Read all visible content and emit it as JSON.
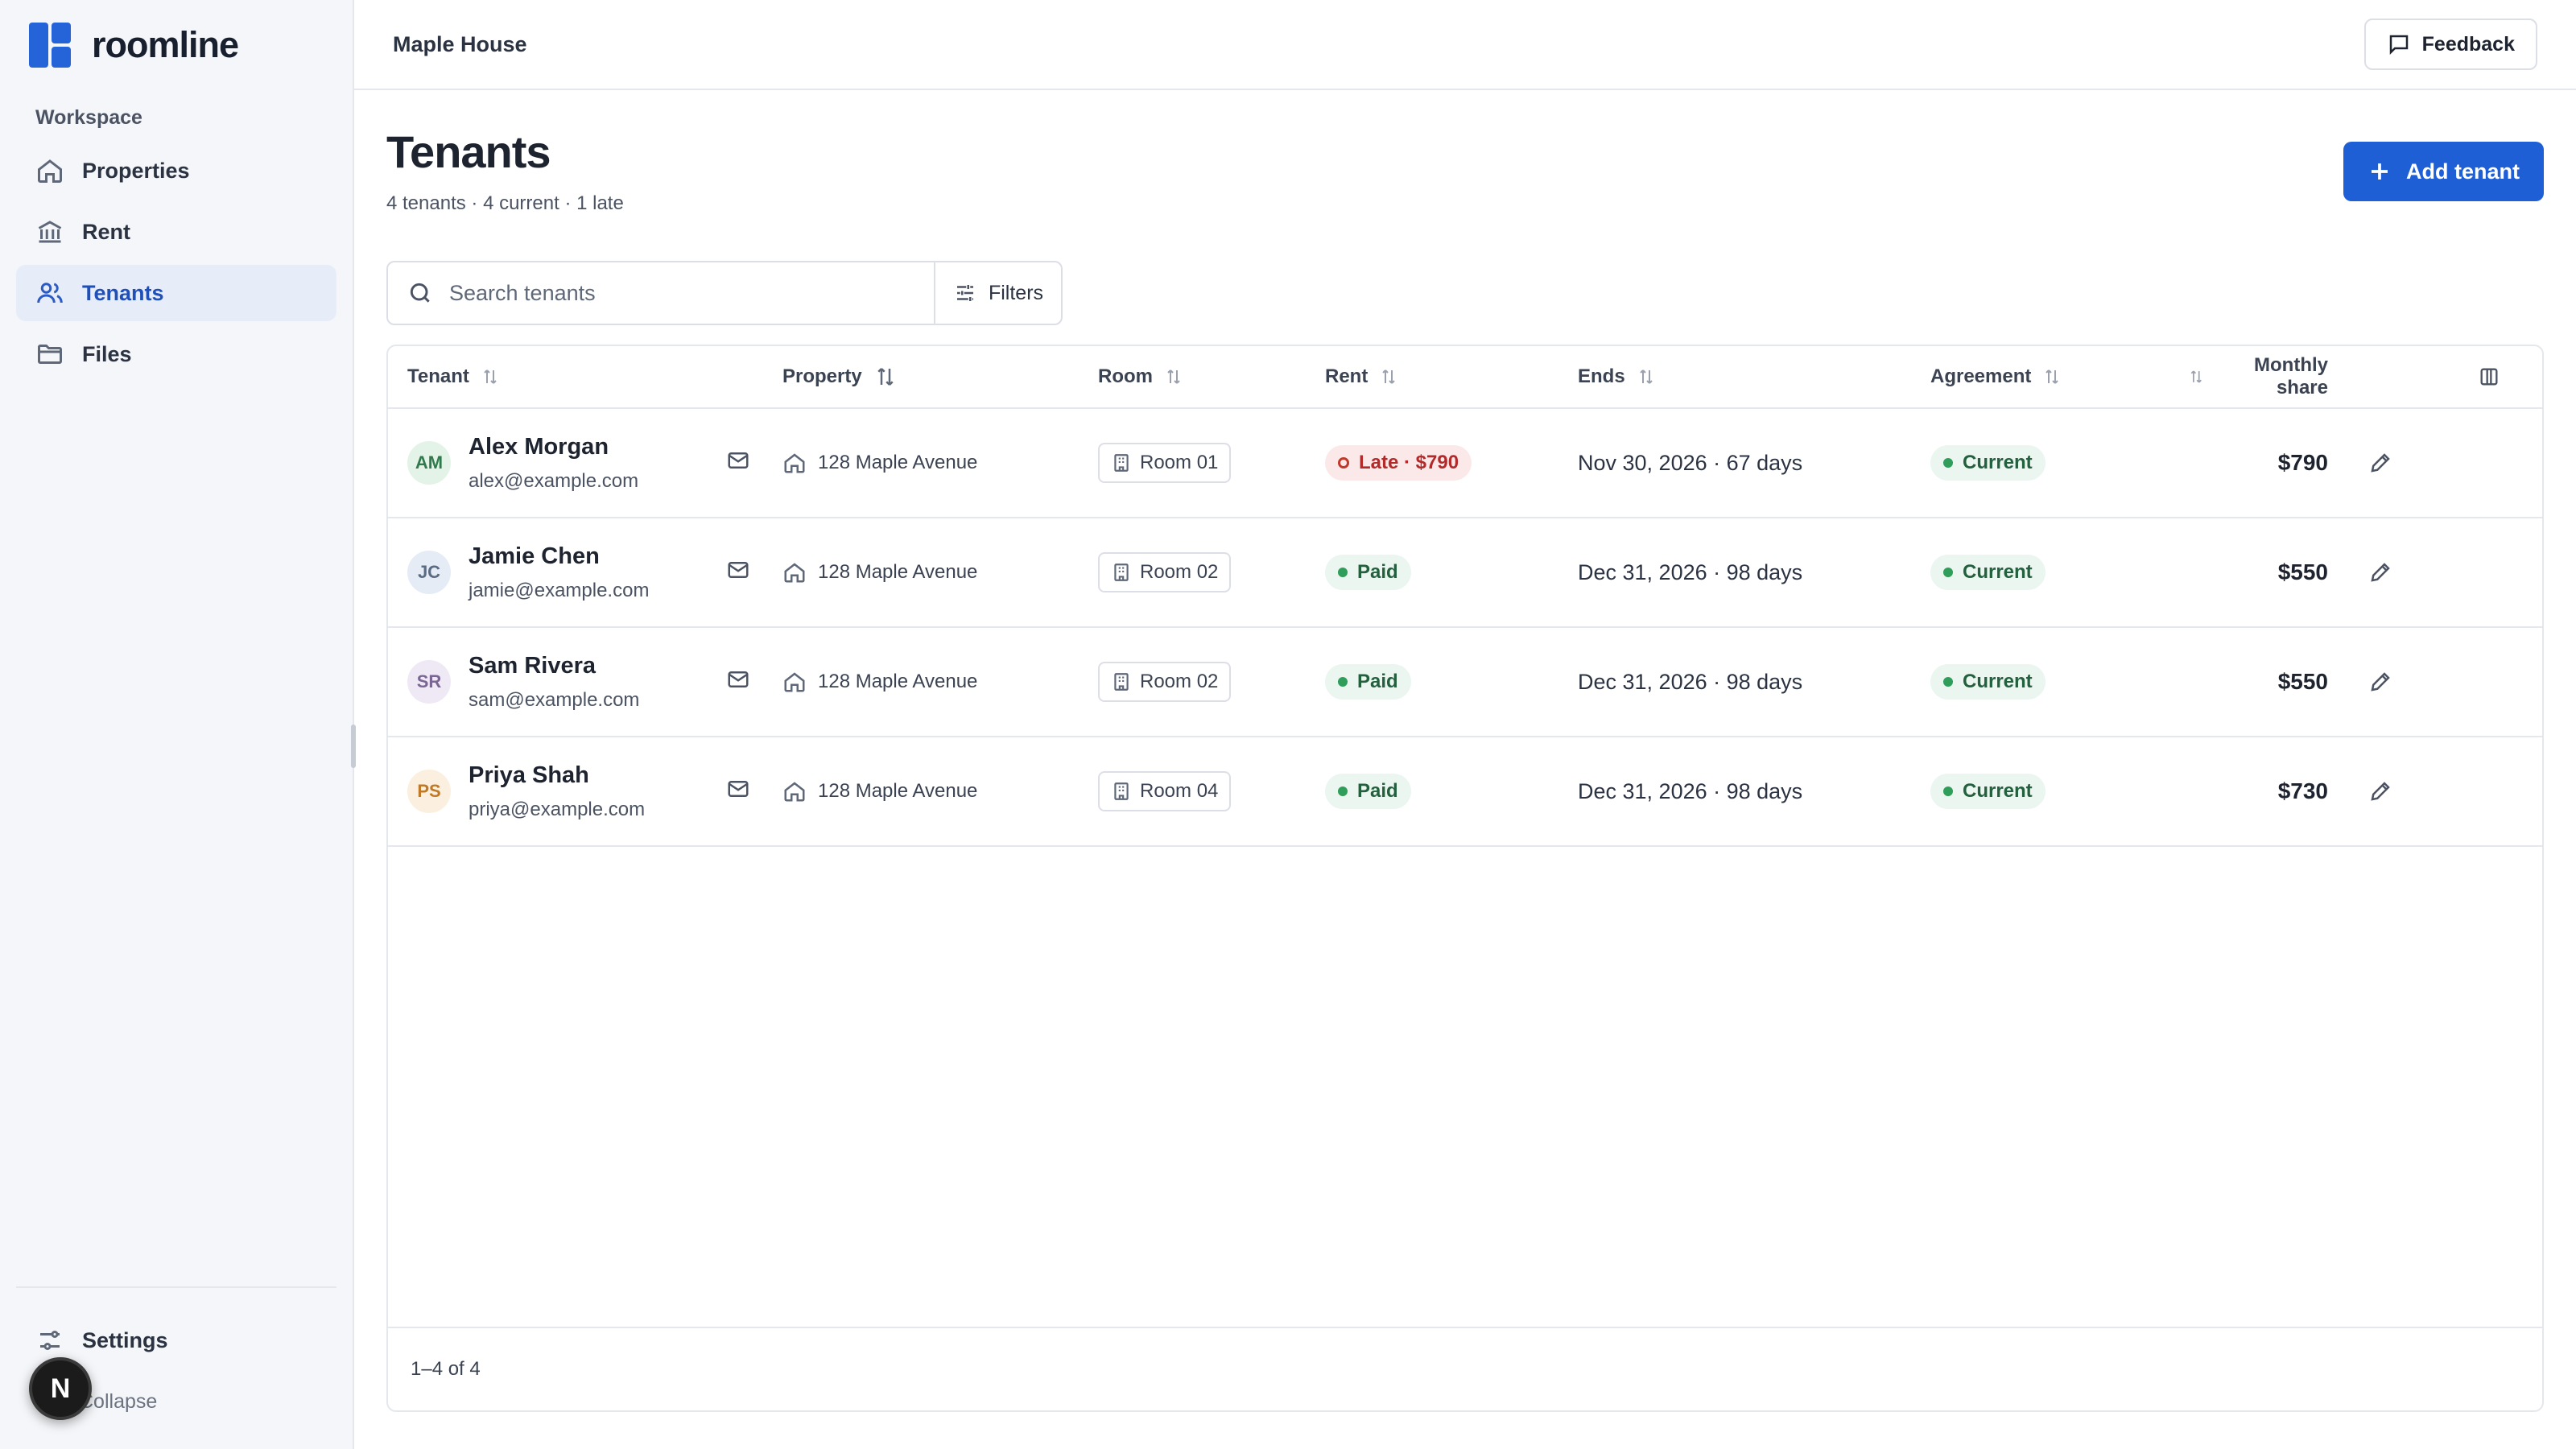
{
  "brand": {
    "name": "roomline",
    "accent": "#2563d9"
  },
  "sidebar": {
    "section_label": "Workspace",
    "items": [
      {
        "label": "Properties",
        "icon": "home-icon",
        "active": false
      },
      {
        "label": "Rent",
        "icon": "bank-icon",
        "active": false
      },
      {
        "label": "Tenants",
        "icon": "users-icon",
        "active": true
      },
      {
        "label": "Files",
        "icon": "folder-icon",
        "active": false
      }
    ],
    "settings_label": "Settings",
    "collapse_label": "Collapse",
    "user_initial": "N"
  },
  "topbar": {
    "title": "Maple House",
    "feedback_label": "Feedback"
  },
  "page": {
    "title": "Tenants",
    "subtitle": "4 tenants · 4 current · 1 late",
    "add_button_label": "Add tenant"
  },
  "search": {
    "placeholder": "Search tenants",
    "value": "",
    "filters_label": "Filters"
  },
  "table": {
    "columns": {
      "tenant": "Tenant",
      "property": "Property",
      "room": "Room",
      "rent": "Rent",
      "ends": "Ends",
      "agreement": "Agreement",
      "share": "Monthly share"
    },
    "rows": [
      {
        "initials": "AM",
        "name": "Alex Morgan",
        "email": "alex@example.com",
        "property": "128 Maple Avenue",
        "room": "Room 01",
        "rent_status": "Late · $790",
        "rent_state": "late",
        "ends": "Nov 30, 2026 · 67 days",
        "agreement": "Current",
        "share": "$790",
        "avatar_bg": "#e3f3e8",
        "avatar_fg": "#2f7a4b"
      },
      {
        "initials": "JC",
        "name": "Jamie Chen",
        "email": "jamie@example.com",
        "property": "128 Maple Avenue",
        "room": "Room 02",
        "rent_status": "Paid",
        "rent_state": "paid",
        "ends": "Dec 31, 2026 · 98 days",
        "agreement": "Current",
        "share": "$550",
        "avatar_bg": "#e6ecf5",
        "avatar_fg": "#5a6b85"
      },
      {
        "initials": "SR",
        "name": "Sam Rivera",
        "email": "sam@example.com",
        "property": "128 Maple Avenue",
        "room": "Room 02",
        "rent_status": "Paid",
        "rent_state": "paid",
        "ends": "Dec 31, 2026 · 98 days",
        "agreement": "Current",
        "share": "$550",
        "avatar_bg": "#efe9f6",
        "avatar_fg": "#7a6594"
      },
      {
        "initials": "PS",
        "name": "Priya Shah",
        "email": "priya@example.com",
        "property": "128 Maple Avenue",
        "room": "Room 04",
        "rent_status": "Paid",
        "rent_state": "paid",
        "ends": "Dec 31, 2026 · 98 days",
        "agreement": "Current",
        "share": "$730",
        "avatar_bg": "#fbefdf",
        "avatar_fg": "#c07a25"
      }
    ],
    "pagination": "1–4 of 4"
  }
}
